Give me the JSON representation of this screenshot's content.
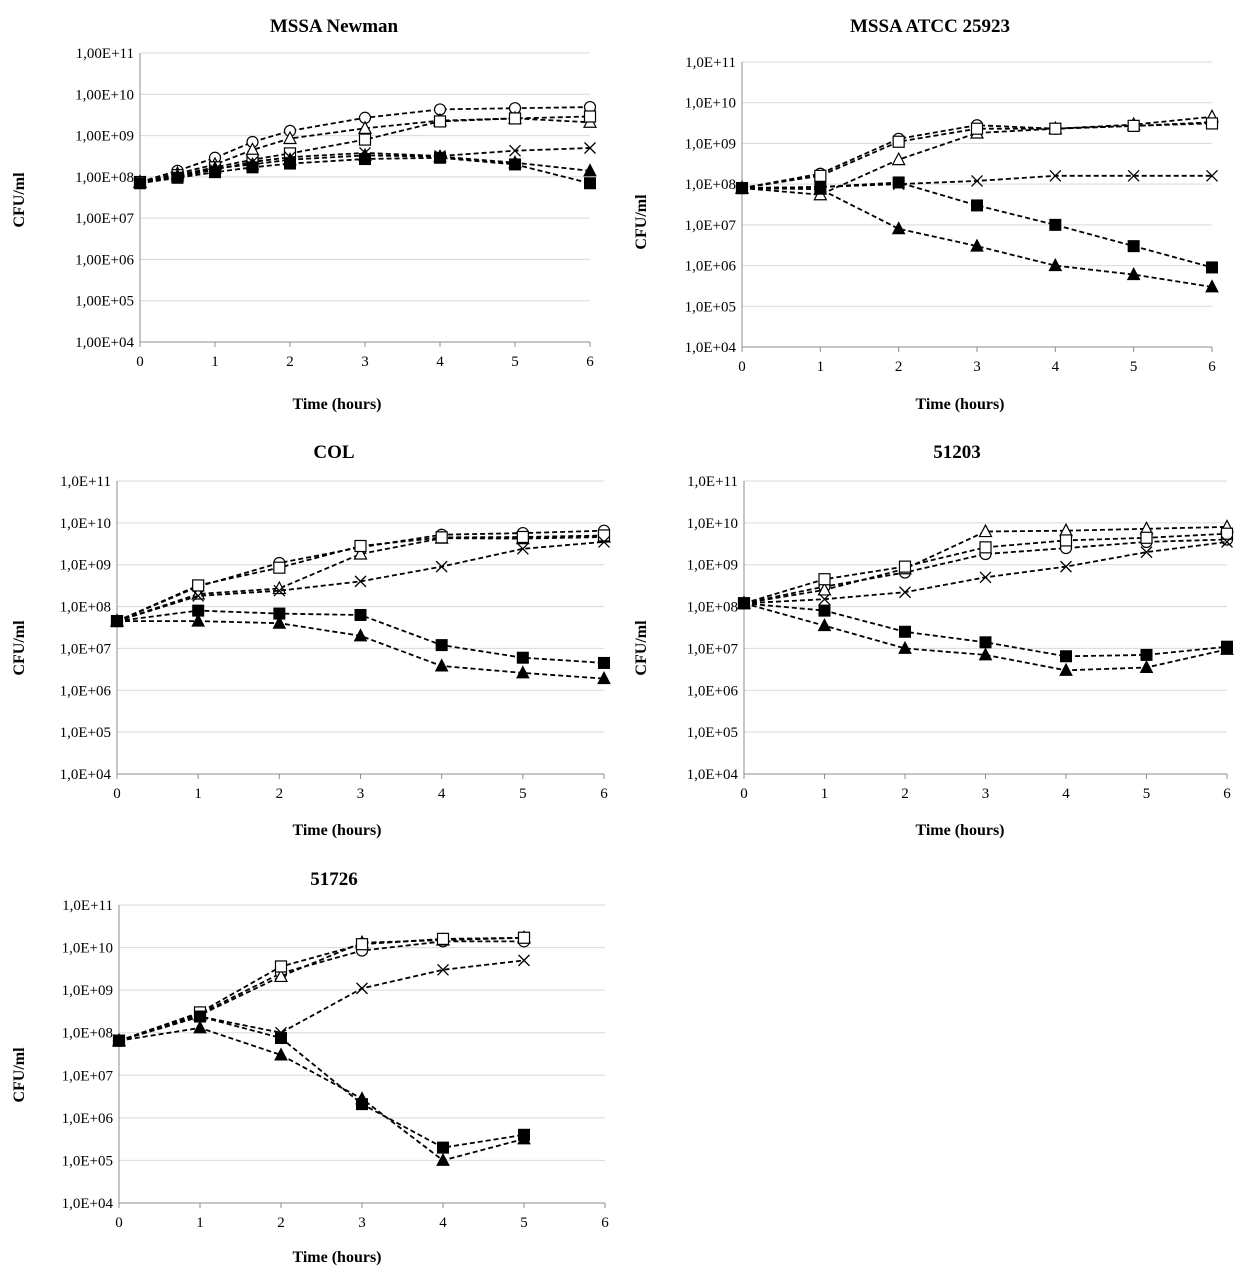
{
  "figure": {
    "panels": [
      {
        "title": "MSSA Newman",
        "xlabel": "Time (hours)",
        "ylabel": "CFU/ml"
      },
      {
        "title": "MSSA ATCC 25923",
        "xlabel": "Time (hours)",
        "ylabel": "CFU/ml"
      },
      {
        "title": "COL",
        "xlabel": "Time (hours)",
        "ylabel": "CFU/ml"
      },
      {
        "title": "51203",
        "xlabel": "Time (hours)",
        "ylabel": "CFU/ml"
      },
      {
        "title": "51726",
        "xlabel": "Time (hours)",
        "ylabel": "CFU/ml"
      }
    ]
  },
  "chart_data": [
    {
      "type": "line",
      "title": "MSSA Newman",
      "xlabel": "Time (hours)",
      "ylabel": "CFU/ml",
      "xlim": [
        0,
        6
      ],
      "ylim": [
        10000,
        100000000000
      ],
      "yscale": "log",
      "grid": true,
      "legend": "none",
      "x_ticks": [
        "0",
        "1",
        "2",
        "3",
        "4",
        "5",
        "6"
      ],
      "y_ticks": [
        "1,00E+04",
        "1,00E+05",
        "1,00E+06",
        "1,00E+07",
        "1,00E+08",
        "1,00E+09",
        "1,00E+10",
        "1,00E+11"
      ],
      "series": [
        {
          "marker": "open-circle",
          "x": [
            0,
            0.5,
            1,
            1.5,
            2,
            3,
            4,
            5,
            6
          ],
          "y": [
            75000000,
            140000000,
            290000000,
            700000000,
            1300000000,
            2700000000,
            4300000000,
            4600000000,
            4900000000
          ]
        },
        {
          "marker": "open-triangle",
          "x": [
            0,
            0.5,
            1,
            1.5,
            2,
            3,
            4,
            5,
            6
          ],
          "y": [
            75000000,
            120000000,
            200000000,
            450000000,
            850000000,
            1500000000,
            2300000000,
            2600000000,
            2100000000
          ]
        },
        {
          "marker": "open-square",
          "x": [
            0,
            0.5,
            1,
            1.5,
            2,
            3,
            4,
            5,
            6
          ],
          "y": [
            75000000,
            110000000,
            170000000,
            260000000,
            370000000,
            800000000,
            2200000000,
            2600000000,
            2900000000
          ]
        },
        {
          "marker": "cross",
          "x": [
            0,
            0.5,
            1,
            1.5,
            2,
            3,
            4,
            5,
            6
          ],
          "y": [
            75000000,
            100000000,
            150000000,
            230000000,
            300000000,
            380000000,
            320000000,
            430000000,
            500000000
          ]
        },
        {
          "marker": "filled-triangle",
          "x": [
            0,
            0.5,
            1,
            1.5,
            2,
            3,
            4,
            5,
            6
          ],
          "y": [
            72000000,
            105000000,
            160000000,
            200000000,
            260000000,
            330000000,
            310000000,
            220000000,
            140000000
          ]
        },
        {
          "marker": "filled-square",
          "x": [
            0,
            0.5,
            1,
            1.5,
            2,
            3,
            4,
            5,
            6
          ],
          "y": [
            70000000,
            95000000,
            130000000,
            170000000,
            210000000,
            270000000,
            290000000,
            200000000,
            70000000
          ]
        }
      ]
    },
    {
      "type": "line",
      "title": "MSSA ATCC 25923",
      "xlabel": "Time (hours)",
      "ylabel": "CFU/ml",
      "xlim": [
        0,
        6
      ],
      "ylim": [
        10000,
        100000000000
      ],
      "yscale": "log",
      "grid": true,
      "legend": "none",
      "x_ticks": [
        "0",
        "1",
        "2",
        "3",
        "4",
        "5",
        "6"
      ],
      "y_ticks": [
        "1,0E+04",
        "1,0E+05",
        "1,0E+06",
        "1,0E+07",
        "1,0E+08",
        "1,0E+09",
        "1,0E+10",
        "1,0E+11"
      ],
      "series": [
        {
          "marker": "open-circle",
          "x": [
            0,
            1,
            2,
            3,
            4,
            5,
            6
          ],
          "y": [
            80000000,
            180000000,
            1300000000,
            2800000000,
            2300000000,
            2700000000,
            3300000000
          ]
        },
        {
          "marker": "open-triangle",
          "x": [
            0,
            1,
            2,
            3,
            4,
            5,
            6
          ],
          "y": [
            80000000,
            55000000,
            400000000,
            1800000000,
            2300000000,
            2900000000,
            4500000000
          ]
        },
        {
          "marker": "open-square",
          "x": [
            0,
            1,
            2,
            3,
            4,
            5,
            6
          ],
          "y": [
            80000000,
            160000000,
            1100000000,
            2300000000,
            2300000000,
            2700000000,
            3100000000
          ]
        },
        {
          "marker": "cross",
          "x": [
            0,
            1,
            2,
            3,
            4,
            5,
            6
          ],
          "y": [
            80000000,
            85000000,
            100000000,
            120000000,
            160000000,
            160000000,
            160000000
          ]
        },
        {
          "marker": "filled-square",
          "x": [
            0,
            1,
            2,
            3,
            4,
            5,
            6
          ],
          "y": [
            80000000,
            85000000,
            110000000,
            30000000,
            10000000,
            3000000,
            900000
          ]
        },
        {
          "marker": "filled-triangle",
          "x": [
            0,
            1,
            2,
            3,
            4,
            5,
            6
          ],
          "y": [
            80000000,
            75000000,
            8000000,
            3000000,
            1000000,
            600000,
            300000
          ]
        }
      ]
    },
    {
      "type": "line",
      "title": "COL",
      "xlabel": "Time (hours)",
      "ylabel": "CFU/ml",
      "xlim": [
        0,
        6
      ],
      "ylim": [
        10000,
        100000000000
      ],
      "yscale": "log",
      "grid": true,
      "legend": "none",
      "x_ticks": [
        "0",
        "1",
        "2",
        "3",
        "4",
        "5",
        "6"
      ],
      "y_ticks": [
        "1,0E+04",
        "1,0E+05",
        "1,0E+06",
        "1,0E+07",
        "1,0E+08",
        "1,0E+09",
        "1,0E+10",
        "1,0E+11"
      ],
      "series": [
        {
          "marker": "open-circle",
          "x": [
            0,
            1,
            2,
            3,
            4,
            5,
            6
          ],
          "y": [
            45000000,
            300000000,
            1100000000,
            2600000000,
            5200000000,
            5700000000,
            6500000000
          ]
        },
        {
          "marker": "open-triangle",
          "x": [
            0,
            1,
            2,
            3,
            4,
            5,
            6
          ],
          "y": [
            45000000,
            200000000,
            270000000,
            1800000000,
            4300000000,
            4200000000,
            4600000000
          ]
        },
        {
          "marker": "open-square",
          "x": [
            0,
            1,
            2,
            3,
            4,
            5,
            6
          ],
          "y": [
            45000000,
            320000000,
            850000000,
            2800000000,
            4500000000,
            4600000000,
            5000000000
          ]
        },
        {
          "marker": "cross",
          "x": [
            0,
            1,
            2,
            3,
            4,
            5,
            6
          ],
          "y": [
            45000000,
            180000000,
            240000000,
            400000000,
            900000000,
            2400000000,
            3500000000
          ]
        },
        {
          "marker": "filled-square",
          "x": [
            0,
            1,
            2,
            3,
            4,
            5,
            6
          ],
          "y": [
            45000000,
            80000000,
            68000000,
            63000000,
            12000000,
            6000000,
            4500000
          ]
        },
        {
          "marker": "filled-triangle",
          "x": [
            0,
            1,
            2,
            3,
            4,
            5,
            6
          ],
          "y": [
            45000000,
            45000000,
            40000000,
            20000000,
            3800000,
            2600000,
            1900000
          ]
        }
      ]
    },
    {
      "type": "line",
      "title": "51203",
      "xlabel": "Time (hours)",
      "ylabel": "CFU/ml",
      "xlim": [
        0,
        6
      ],
      "ylim": [
        10000,
        100000000000
      ],
      "yscale": "log",
      "grid": true,
      "legend": "none",
      "x_ticks": [
        "0",
        "1",
        "2",
        "3",
        "4",
        "5",
        "6"
      ],
      "y_ticks": [
        "1,0E+04",
        "1,0E+05",
        "1,0E+06",
        "1,0E+07",
        "1,0E+08",
        "1,0E+09",
        "1,0E+10",
        "1,0E+11"
      ],
      "series": [
        {
          "marker": "open-circle",
          "x": [
            0,
            1,
            2,
            3,
            4,
            5,
            6
          ],
          "y": [
            120000000,
            300000000,
            650000000,
            1800000000,
            2500000000,
            3500000000,
            4000000000
          ]
        },
        {
          "marker": "open-triangle",
          "x": [
            0,
            1,
            2,
            3,
            4,
            5,
            6
          ],
          "y": [
            120000000,
            250000000,
            800000000,
            6200000000,
            6500000000,
            7200000000,
            8000000000
          ]
        },
        {
          "marker": "open-square",
          "x": [
            0,
            1,
            2,
            3,
            4,
            5,
            6
          ],
          "y": [
            120000000,
            450000000,
            900000000,
            2600000000,
            3800000000,
            4400000000,
            5500000000
          ]
        },
        {
          "marker": "cross",
          "x": [
            0,
            1,
            2,
            3,
            4,
            5,
            6
          ],
          "y": [
            120000000,
            150000000,
            220000000,
            500000000,
            900000000,
            2000000000,
            3500000000
          ]
        },
        {
          "marker": "filled-square",
          "x": [
            0,
            1,
            2,
            3,
            4,
            5,
            6
          ],
          "y": [
            120000000,
            80000000,
            25000000,
            14000000,
            6500000,
            7000000,
            11000000
          ]
        },
        {
          "marker": "filled-triangle",
          "x": [
            0,
            1,
            2,
            3,
            4,
            5,
            6
          ],
          "y": [
            120000000,
            35000000,
            10000000,
            7000000,
            3000000,
            3500000,
            9500000
          ]
        }
      ]
    },
    {
      "type": "line",
      "title": "51726",
      "xlabel": "Time (hours)",
      "ylabel": "CFU/ml",
      "xlim": [
        0,
        6
      ],
      "ylim": [
        10000,
        100000000000
      ],
      "yscale": "log",
      "grid": true,
      "legend": "none",
      "x_ticks": [
        "0",
        "1",
        "2",
        "3",
        "4",
        "5",
        "6"
      ],
      "y_ticks": [
        "1,0E+04",
        "1,0E+05",
        "1,0E+06",
        "1,0E+07",
        "1,0E+08",
        "1,0E+09",
        "1,0E+10",
        "1,0E+11"
      ],
      "series": [
        {
          "marker": "open-circle",
          "x": [
            0,
            1,
            2,
            3,
            4,
            5
          ],
          "y": [
            65000000,
            280000000,
            2500000000,
            8500000000,
            14000000000,
            14000000000
          ]
        },
        {
          "marker": "open-triangle",
          "x": [
            0,
            1,
            2,
            3,
            4,
            5
          ],
          "y": [
            65000000,
            260000000,
            2100000000,
            13000000000,
            15000000000,
            17000000000
          ]
        },
        {
          "marker": "open-square",
          "x": [
            0,
            1,
            2,
            3,
            4,
            5
          ],
          "y": [
            65000000,
            300000000,
            3600000000,
            12000000000,
            16000000000,
            17000000000
          ]
        },
        {
          "marker": "cross",
          "x": [
            0,
            1,
            2,
            3,
            4,
            5
          ],
          "y": [
            65000000,
            240000000,
            100000000,
            1100000000,
            3000000000,
            5000000000
          ]
        },
        {
          "marker": "filled-square",
          "x": [
            0,
            1,
            2,
            3,
            4,
            5
          ],
          "y": [
            65000000,
            240000000,
            75000000,
            2100000,
            200000,
            400000
          ]
        },
        {
          "marker": "filled-triangle",
          "x": [
            0,
            1,
            2,
            3,
            4,
            5
          ],
          "y": [
            65000000,
            130000000,
            30000000,
            2800000,
            100000,
            320000
          ]
        }
      ]
    }
  ]
}
